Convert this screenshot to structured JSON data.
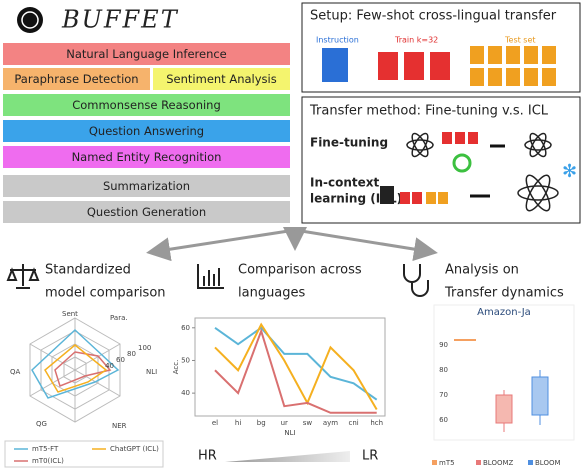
{
  "header": {
    "title": "BUFFET"
  },
  "tasks": [
    {
      "label": "Natural Language Inference",
      "color": "#f38383",
      "x": 3,
      "w": 287,
      "row": 0
    },
    {
      "label": "Paraphrase Detection",
      "color": "#f6b36c",
      "x": 3,
      "w": 147,
      "row": 1
    },
    {
      "label": "Sentiment Analysis",
      "color": "#f4f46e",
      "x": 153,
      "w": 137,
      "row": 1
    },
    {
      "label": "Commonsense Reasoning",
      "color": "#7ee37e",
      "x": 3,
      "w": 287,
      "row": 2
    },
    {
      "label": "Question Answering",
      "color": "#3aa3ea",
      "x": 3,
      "w": 287,
      "row": 3
    },
    {
      "label": "Named Entity Recognition",
      "color": "#ef6cef",
      "x": 3,
      "w": 287,
      "row": 4
    },
    {
      "label": "Summarization",
      "color": "#c9c9c9",
      "x": 3,
      "w": 287,
      "row": 5
    },
    {
      "label": "Question Generation",
      "color": "#c9c9c9",
      "x": 3,
      "w": 287,
      "row": 6
    }
  ],
  "setup": {
    "title": "Setup: Few-shot cross-lingual transfer",
    "instruction": "Instruction",
    "train": "Train k=32",
    "test": "Test set"
  },
  "transfer": {
    "title": "Transfer method: Fine-tuning v.s. ICL",
    "fine_tuning": "Fine-tuning",
    "icl_line1": "In-context",
    "icl_line2": "learning (ICL)"
  },
  "sections": [
    {
      "line1": "Standardized",
      "line2": "model comparison"
    },
    {
      "line1": "Comparison across",
      "line2": "languages"
    },
    {
      "line1": "Analysis on",
      "line2": "Transfer dynamics"
    }
  ],
  "radar": {
    "axes": [
      "Sent",
      "Para.",
      "NLI",
      "NER",
      "QG",
      "QA"
    ],
    "ticks": [
      "100",
      "80",
      "60",
      "40"
    ],
    "legend": [
      "mT5-FT",
      "mT0(ICL)",
      "ChatGPT (ICL)"
    ]
  },
  "line_chart": {
    "categories": [
      "el",
      "hi",
      "bg",
      "ur",
      "sw",
      "aym",
      "cni",
      "hch"
    ],
    "xlabel": "NLI",
    "ylabel": "Acc.",
    "ylim": [
      33,
      63
    ],
    "yticks": [
      40,
      50,
      60
    ],
    "series": [
      {
        "color": "#5bb5d8",
        "values": [
          60,
          55,
          60,
          52,
          52,
          45,
          43,
          38
        ]
      },
      {
        "color": "#f5b020",
        "values": [
          54,
          47,
          61,
          50,
          37,
          54,
          47,
          35
        ]
      },
      {
        "color": "#d97070",
        "values": [
          47,
          40,
          59,
          36,
          37,
          34,
          34,
          34
        ]
      }
    ]
  },
  "box_chart": {
    "title": "Amazon-Ja",
    "yticks": [
      "90",
      "80",
      "70",
      "60"
    ],
    "legend": [
      "mT5",
      "BLOOMZ",
      "BLOOM"
    ]
  },
  "footer": {
    "left": "HR",
    "right": "LR"
  }
}
